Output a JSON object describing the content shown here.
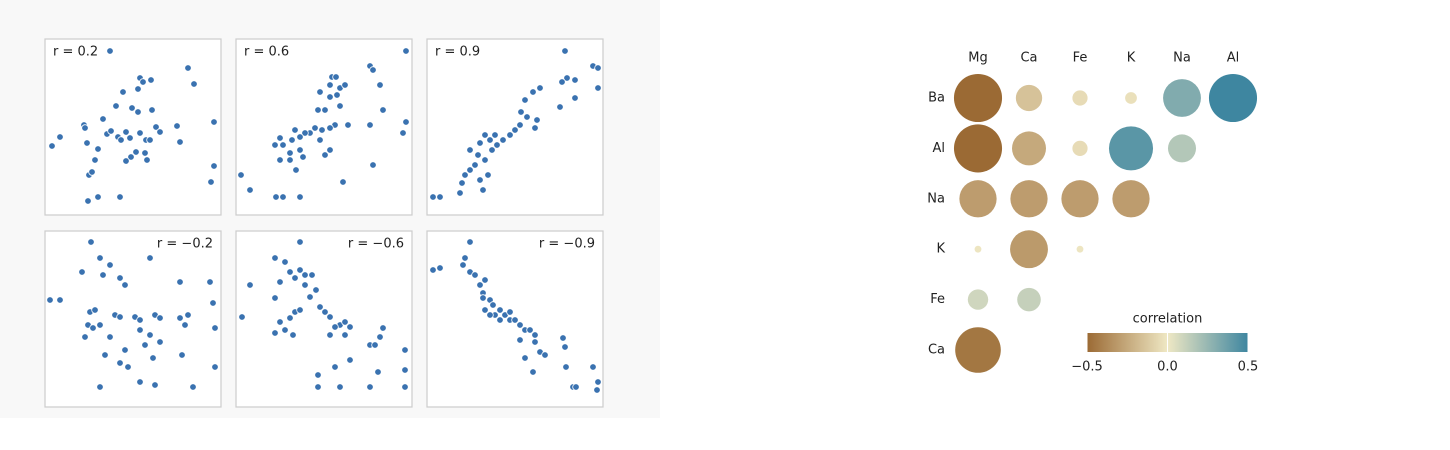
{
  "chart_data": [
    {
      "type": "scatter",
      "title": "r = 0.2",
      "label_corner": "top-left",
      "color": "#3a72b0",
      "xlim": [
        0,
        176
      ],
      "ylim": [
        0,
        176
      ],
      "x": [
        65,
        7,
        15,
        43,
        53,
        75,
        44,
        47,
        50,
        42,
        53,
        58,
        39,
        40,
        62,
        66,
        73,
        76,
        71,
        81,
        85,
        95,
        98,
        106,
        93,
        78,
        87,
        93,
        107,
        95,
        101,
        105,
        100,
        102,
        86,
        81,
        91,
        111,
        115,
        132,
        135,
        143,
        149,
        169,
        169,
        166
      ],
      "y": [
        164,
        69,
        78,
        14,
        18,
        18,
        40,
        43,
        55,
        72,
        66,
        96,
        90,
        87,
        81,
        84,
        78,
        75,
        109,
        83,
        77,
        137,
        133,
        135,
        126,
        123,
        107,
        103,
        105,
        82,
        75,
        75,
        62,
        55,
        58,
        54,
        63,
        88,
        83,
        89,
        73,
        147,
        131,
        93,
        49,
        33
      ]
    },
    {
      "type": "scatter",
      "title": "r = 0.6",
      "label_corner": "top-left",
      "color": "#3a72b0",
      "xlim": [
        0,
        176
      ],
      "ylim": [
        0,
        176
      ],
      "x": [
        170,
        134,
        137,
        144,
        147,
        170,
        167,
        134,
        137,
        107,
        5,
        14,
        40,
        47,
        64,
        96,
        100,
        94,
        104,
        109,
        101,
        94,
        84,
        89,
        82,
        104,
        99,
        112,
        94,
        86,
        79,
        74,
        69,
        64,
        56,
        59,
        54,
        47,
        39,
        44,
        64,
        67,
        84,
        94,
        89,
        54,
        60,
        44
      ],
      "y": [
        164,
        149,
        145,
        130,
        105,
        93,
        82,
        90,
        50,
        33,
        40,
        25,
        18,
        18,
        18,
        138,
        138,
        130,
        127,
        130,
        120,
        118,
        123,
        105,
        105,
        109,
        90,
        90,
        87,
        85,
        87,
        82,
        82,
        78,
        75,
        85,
        62,
        70,
        70,
        77,
        65,
        58,
        75,
        65,
        60,
        55,
        45,
        55
      ]
    },
    {
      "type": "scatter",
      "title": "r = 0.9",
      "label_corner": "top-left",
      "color": "#3a72b0",
      "xlim": [
        0,
        176
      ],
      "ylim": [
        0,
        176
      ],
      "x": [
        138,
        166,
        171,
        171,
        148,
        140,
        135,
        148,
        133,
        113,
        106,
        98,
        94,
        100,
        110,
        108,
        93,
        88,
        83,
        76,
        68,
        63,
        58,
        53,
        70,
        65,
        51,
        43,
        58,
        48,
        43,
        38,
        35,
        56,
        33,
        6,
        13,
        61,
        53
      ],
      "y": [
        164,
        149,
        147,
        127,
        135,
        137,
        133,
        117,
        108,
        127,
        123,
        115,
        103,
        98,
        95,
        87,
        90,
        85,
        80,
        75,
        80,
        75,
        80,
        72,
        70,
        65,
        60,
        65,
        55,
        50,
        45,
        40,
        32,
        25,
        22,
        18,
        18,
        40,
        35
      ]
    },
    {
      "type": "scatter",
      "title": "r = −0.2",
      "label_corner": "top-right",
      "color": "#3a72b0",
      "xlim": [
        0,
        176
      ],
      "ylim": [
        0,
        176
      ],
      "x": [
        46,
        55,
        65,
        37,
        58,
        75,
        80,
        105,
        135,
        165,
        5,
        15,
        168,
        45,
        50,
        70,
        75,
        90,
        95,
        110,
        115,
        135,
        143,
        140,
        170,
        43,
        55,
        48,
        40,
        65,
        95,
        105,
        100,
        115,
        80,
        108,
        137,
        75,
        83,
        60,
        95,
        110,
        55,
        148,
        170
      ],
      "y": [
        165,
        149,
        142,
        135,
        132,
        129,
        122,
        149,
        125,
        125,
        107,
        107,
        104,
        95,
        97,
        92,
        90,
        90,
        87,
        92,
        89,
        89,
        92,
        82,
        79,
        82,
        82,
        79,
        70,
        70,
        77,
        72,
        62,
        65,
        57,
        49,
        52,
        44,
        40,
        52,
        25,
        22,
        20,
        20,
        40
      ]
    },
    {
      "type": "scatter",
      "title": "r = −0.6",
      "label_corner": "top-right",
      "color": "#3a72b0",
      "xlim": [
        0,
        176
      ],
      "ylim": [
        0,
        176
      ],
      "x": [
        64,
        39,
        49,
        54,
        64,
        59,
        69,
        76,
        44,
        14,
        39,
        69,
        80,
        74,
        84,
        89,
        94,
        104,
        109,
        114,
        99,
        94,
        109,
        147,
        144,
        6,
        44,
        54,
        59,
        64,
        49,
        57,
        39,
        134,
        139,
        169,
        114,
        99,
        82,
        169,
        142,
        82,
        104,
        134,
        169
      ],
      "y": [
        165,
        149,
        145,
        135,
        137,
        129,
        132,
        132,
        125,
        122,
        109,
        122,
        117,
        110,
        100,
        95,
        90,
        82,
        85,
        80,
        80,
        72,
        72,
        79,
        70,
        90,
        85,
        89,
        95,
        97,
        77,
        72,
        74,
        62,
        62,
        57,
        47,
        40,
        32,
        37,
        35,
        20,
        20,
        20,
        20
      ]
    },
    {
      "type": "scatter",
      "title": "r = −0.9",
      "label_corner": "top-right",
      "color": "#3a72b0",
      "xlim": [
        0,
        176
      ],
      "ylim": [
        0,
        176
      ],
      "x": [
        43,
        13,
        6,
        38,
        36,
        43,
        48,
        58,
        53,
        56,
        63,
        56,
        66,
        58,
        73,
        78,
        73,
        83,
        88,
        93,
        98,
        103,
        108,
        68,
        83,
        63,
        93,
        108,
        113,
        118,
        136,
        138,
        98,
        106,
        139,
        166,
        146,
        149,
        171,
        170
      ],
      "y": [
        165,
        139,
        137,
        149,
        142,
        135,
        132,
        127,
        122,
        114,
        107,
        109,
        102,
        97,
        97,
        92,
        87,
        87,
        87,
        82,
        77,
        77,
        72,
        92,
        95,
        92,
        67,
        65,
        55,
        52,
        69,
        60,
        49,
        35,
        40,
        40,
        20,
        20,
        25,
        17
      ]
    },
    {
      "type": "correlogram",
      "columns": [
        "Mg",
        "Ca",
        "Fe",
        "K",
        "Na",
        "Al"
      ],
      "rows": [
        "Ba",
        "Al",
        "Na",
        "K",
        "Fe",
        "Ca"
      ],
      "values": [
        [
          -0.5,
          -0.15,
          -0.05,
          -0.03,
          0.31,
          0.5
        ],
        [
          -0.5,
          -0.25,
          -0.05,
          0.42,
          0.17
        ],
        [
          -0.3,
          -0.3,
          -0.3,
          -0.3
        ],
        [
          -0.01,
          -0.31,
          -0.01
        ],
        [
          0.09,
          0.12
        ],
        [
          -0.45
        ]
      ],
      "colorbar_title": "correlation",
      "clim": [
        -0.5,
        0.5
      ],
      "colors": [
        "#9b6a34",
        "#efe8c4",
        "#3e86a0"
      ],
      "cticks": [
        {
          "value": -0.5,
          "label": "−0.5"
        },
        {
          "value": 0,
          "label": "0.0"
        },
        {
          "value": 0.5,
          "label": "0.5"
        }
      ]
    }
  ]
}
